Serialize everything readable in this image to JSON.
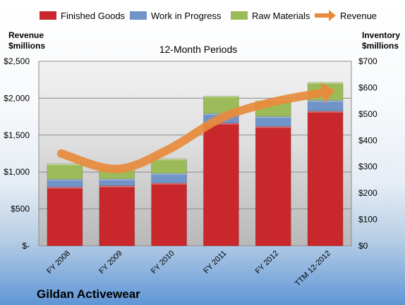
{
  "chart_data": {
    "type": "bar",
    "stacked": true,
    "title": "12-Month Periods",
    "company": "Gildan Activewear",
    "categories": [
      "FY 2008",
      "FY 2009",
      "FY 2010",
      "FY 2011",
      "FY 2012",
      "TTM 12-2012"
    ],
    "left_axis": {
      "label_line1": "Revenue",
      "label_line2": "$millions",
      "range": [
        0,
        2500
      ],
      "ticks": [
        0,
        500,
        1000,
        1500,
        2000,
        2500
      ],
      "tick_labels": [
        "$-",
        "$500",
        "$1,000",
        "$1,500",
        "$2,000",
        "$2,500"
      ]
    },
    "right_axis": {
      "label_line1": "Inventory",
      "label_line2": "$millions",
      "range": [
        0,
        700
      ],
      "ticks": [
        0,
        100,
        200,
        300,
        400,
        500,
        600,
        700
      ],
      "tick_labels": [
        "$0",
        "$100",
        "$200",
        "$300",
        "$400",
        "$500",
        "$600",
        "$700"
      ]
    },
    "series": [
      {
        "name": "Finished Goods",
        "axis": "right",
        "color": "#c8282c",
        "values": [
          223,
          228,
          238,
          466,
          453,
          511
        ]
      },
      {
        "name": "Work in Progress",
        "axis": "right",
        "color": "#7094c8",
        "values": [
          30,
          26,
          37,
          36,
          38,
          41
        ]
      },
      {
        "name": "Raw Materials",
        "axis": "right",
        "color": "#9bbb59",
        "values": [
          58,
          36,
          55,
          66,
          59,
          68
        ]
      },
      {
        "name": "Revenue",
        "axis": "left",
        "type": "line",
        "color": "#e88a3c",
        "values": [
          1250,
          1040,
          1310,
          1730,
          1950,
          2080
        ]
      }
    ],
    "grid": true,
    "legend_position": "top"
  }
}
